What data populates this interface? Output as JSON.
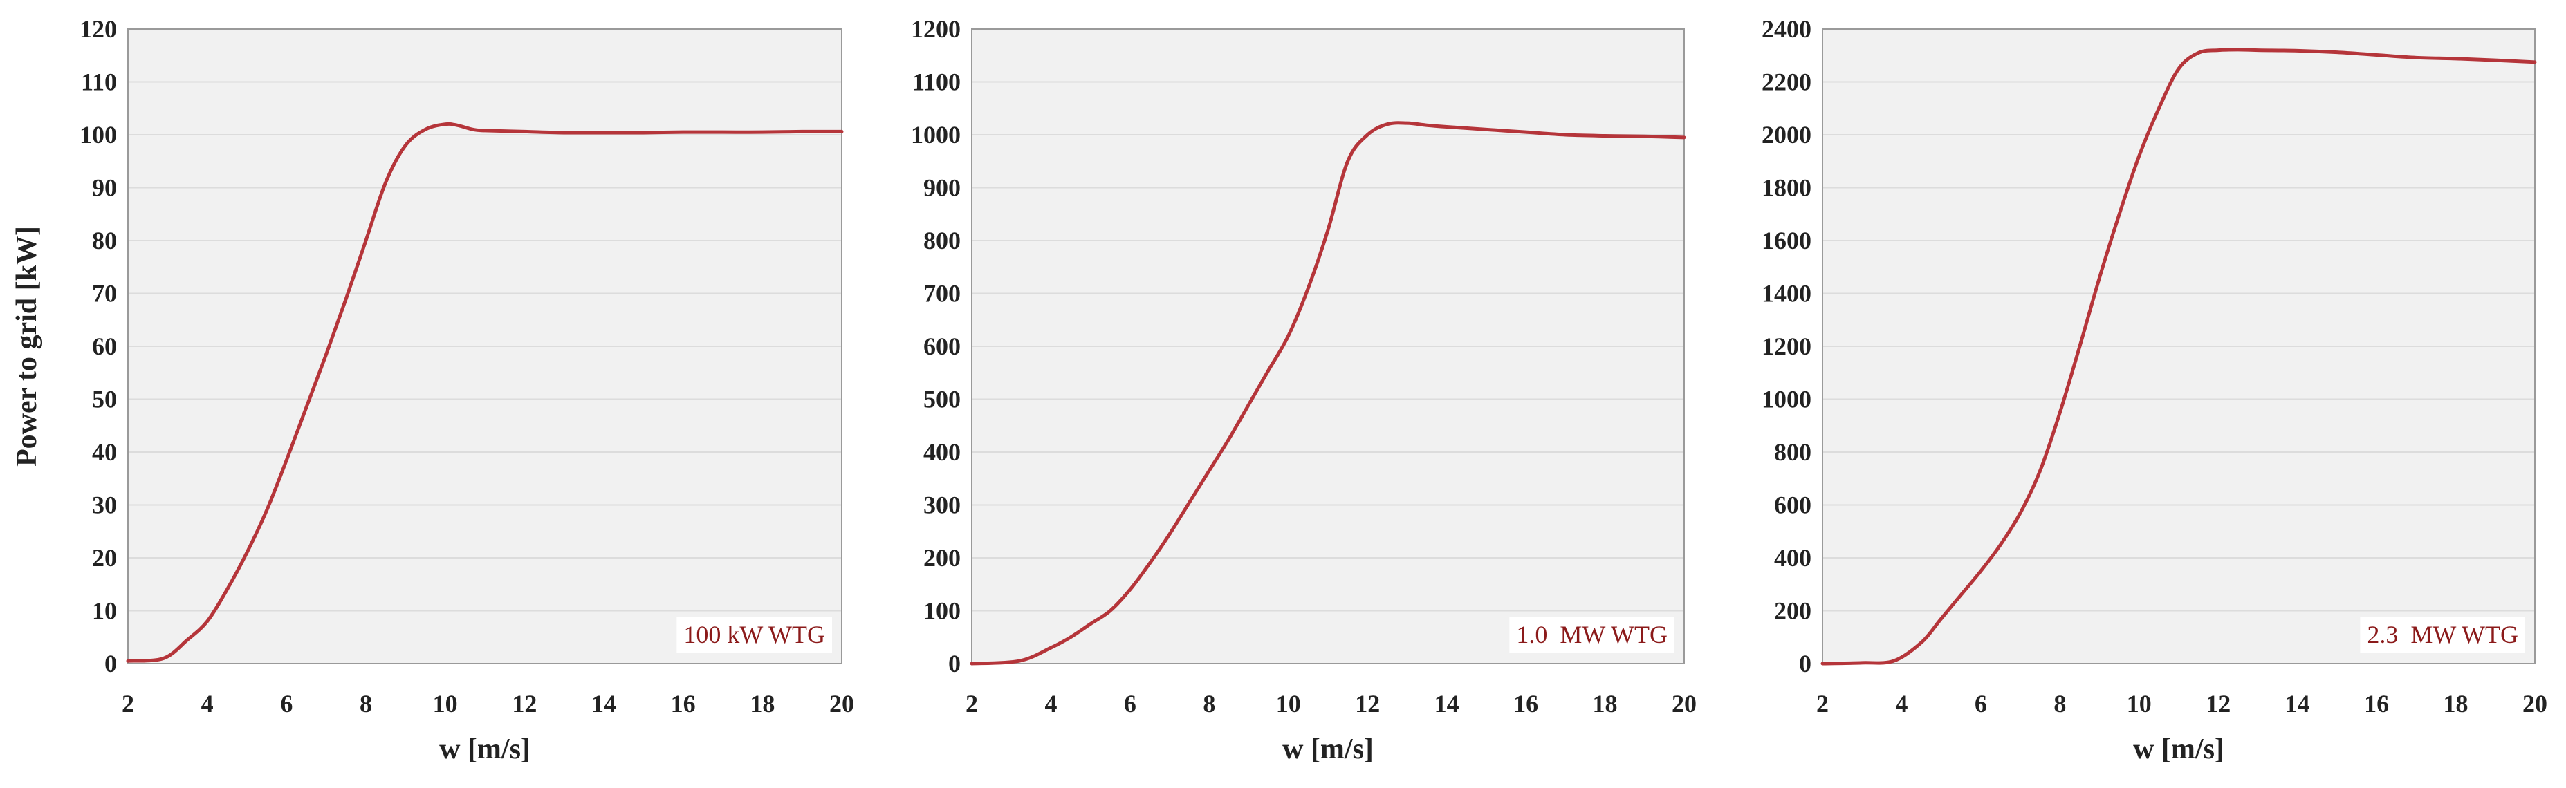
{
  "colors": {
    "plot_background": "#f1f1f1",
    "grid": "#dcdcdc",
    "frame": "#9a9a9a",
    "curve": "#b5353a",
    "label_text": "#8b1a1a",
    "tick_text": "#222222"
  },
  "chart_data": [
    {
      "type": "line",
      "label": "100 kW WTG",
      "xlabel": "w [m/s]",
      "ylabel": "Power to grid [kW]",
      "xlim": [
        2,
        20
      ],
      "ylim": [
        0,
        120
      ],
      "x_ticks": [
        "2",
        "4",
        "6",
        "8",
        "10",
        "12",
        "14",
        "16",
        "18",
        "20"
      ],
      "y_ticks": [
        "0",
        "10",
        "20",
        "30",
        "40",
        "50",
        "60",
        "70",
        "80",
        "90",
        "100",
        "110",
        "120"
      ],
      "grid": "horizontal",
      "series": [
        {
          "x": [
            2,
            2.9,
            3.5,
            4,
            4.5,
            5,
            5.5,
            6,
            6.5,
            7,
            7.5,
            8,
            8.5,
            9,
            9.5,
            10,
            10.3,
            10.7,
            11,
            12,
            13,
            14,
            15,
            16,
            17,
            18,
            19,
            20
          ],
          "y": [
            0.5,
            1,
            4.5,
            8,
            14,
            21,
            29,
            38.5,
            48.5,
            58.5,
            69,
            80,
            91,
            98,
            101,
            102,
            101.8,
            101,
            100.8,
            100.6,
            100.4,
            100.4,
            100.4,
            100.5,
            100.5,
            100.5,
            100.6,
            100.6
          ]
        }
      ]
    },
    {
      "type": "line",
      "label": "1.0  MW WTG",
      "xlabel": "w [m/s]",
      "ylabel": "",
      "xlim": [
        2,
        20
      ],
      "ylim": [
        0,
        1200
      ],
      "x_ticks": [
        "2",
        "4",
        "6",
        "8",
        "10",
        "12",
        "14",
        "16",
        "18",
        "20"
      ],
      "y_ticks": [
        "0",
        "100",
        "200",
        "300",
        "400",
        "500",
        "600",
        "700",
        "800",
        "900",
        "1000",
        "1100",
        "1200"
      ],
      "grid": "horizontal",
      "series": [
        {
          "x": [
            2,
            3.2,
            4,
            4.5,
            5,
            5.5,
            6,
            6.5,
            7,
            7.5,
            8,
            8.5,
            9,
            9.5,
            10,
            10.5,
            11,
            11.5,
            12,
            12.5,
            13,
            13.5,
            14,
            15,
            16,
            17,
            18,
            19,
            20
          ],
          "y": [
            0,
            5,
            30,
            50,
            75,
            100,
            140,
            190,
            245,
            305,
            365,
            425,
            490,
            555,
            620,
            710,
            820,
            950,
            1000,
            1020,
            1022,
            1018,
            1015,
            1010,
            1005,
            1000,
            998,
            997,
            995
          ]
        }
      ]
    },
    {
      "type": "line",
      "label": "2.3  MW WTG",
      "xlabel": "w [m/s]",
      "ylabel": "",
      "xlim": [
        2,
        20
      ],
      "ylim": [
        0,
        2400
      ],
      "x_ticks": [
        "2",
        "4",
        "6",
        "8",
        "10",
        "12",
        "14",
        "16",
        "18",
        "20"
      ],
      "y_ticks": [
        "0",
        "200",
        "400",
        "600",
        "800",
        "1000",
        "1200",
        "1400",
        "1600",
        "1800",
        "2000",
        "2200",
        "2400"
      ],
      "grid": "horizontal",
      "series": [
        {
          "x": [
            2,
            3,
            3.8,
            4.5,
            5,
            5.5,
            6,
            6.5,
            7,
            7.5,
            8,
            8.5,
            9,
            9.5,
            10,
            10.5,
            11,
            11.5,
            12,
            12.5,
            13,
            14,
            15,
            16,
            17,
            18,
            19,
            20
          ],
          "y": [
            0,
            3,
            10,
            80,
            170,
            260,
            350,
            450,
            570,
            730,
            950,
            1200,
            1460,
            1700,
            1920,
            2100,
            2250,
            2310,
            2320,
            2322,
            2320,
            2318,
            2312,
            2302,
            2292,
            2288,
            2282,
            2275
          ]
        }
      ]
    }
  ]
}
